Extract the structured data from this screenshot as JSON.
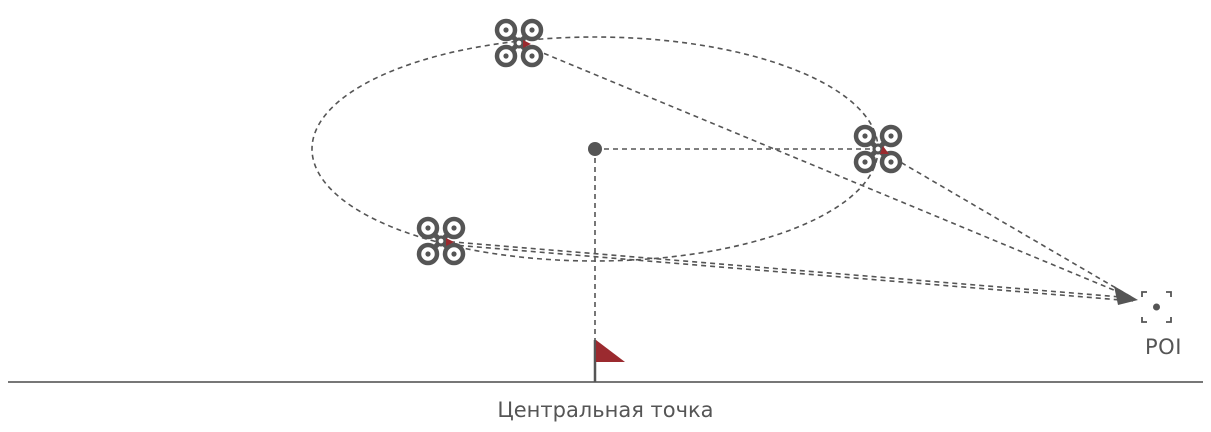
{
  "labels": {
    "poi": "POI",
    "center_point": "Центральная точка"
  },
  "colors": {
    "line": "#555555",
    "accent": "#9b2a2f",
    "ground": "#777777"
  },
  "icons": {
    "drone": "quadcopter-drone-icon",
    "flag": "flag-icon",
    "poi": "poi-target-icon",
    "center": "center-dot-icon",
    "arrow": "arrowhead-icon"
  }
}
